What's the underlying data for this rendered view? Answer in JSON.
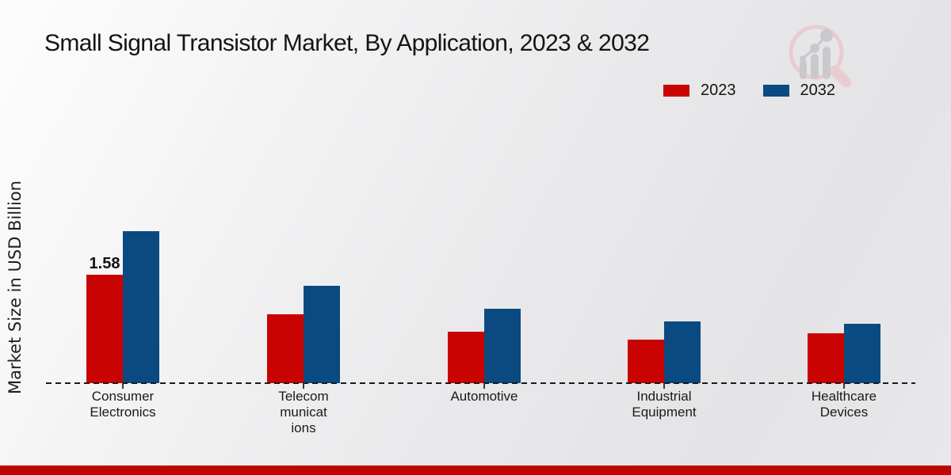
{
  "title": "Small Signal Transistor Market, By Application, 2023 & 2032",
  "legend": {
    "items": [
      {
        "label": "2023",
        "color": "#c90202"
      },
      {
        "label": "2032",
        "color": "#0b4a80"
      }
    ]
  },
  "icons": {
    "logo": "magnifier-bar-chart-icon"
  },
  "footer_bar_color": "#c00404",
  "chart_data": {
    "type": "bar",
    "title": "Small Signal Transistor Market, By Application, 2023 & 2032",
    "ylabel": "Market Size in USD Billion",
    "xlabel": "",
    "ylim": [
      0,
      2.5
    ],
    "grid": false,
    "legend_position": "top-right",
    "baseline_style": "dashed",
    "categories": [
      "Consumer Electronics",
      "Telecommunications",
      "Automotive",
      "Industrial Equipment",
      "Healthcare Devices"
    ],
    "category_display_lines": [
      [
        "Consumer",
        "Electronics"
      ],
      [
        "Telecom",
        "municat",
        "ions"
      ],
      [
        "Automotive"
      ],
      [
        "Industrial",
        "Equipment"
      ],
      [
        "Healthcare",
        "Devices"
      ]
    ],
    "series": [
      {
        "name": "2023",
        "color": "#c90202",
        "values": [
          1.58,
          1.0,
          0.75,
          0.64,
          0.73
        ],
        "value_labels": [
          "1.58",
          "",
          "",
          "",
          ""
        ]
      },
      {
        "name": "2032",
        "color": "#0b4a80",
        "values": [
          2.21,
          1.42,
          1.08,
          0.9,
          0.86
        ],
        "value_labels": [
          "",
          "",
          "",
          "",
          ""
        ]
      }
    ]
  }
}
